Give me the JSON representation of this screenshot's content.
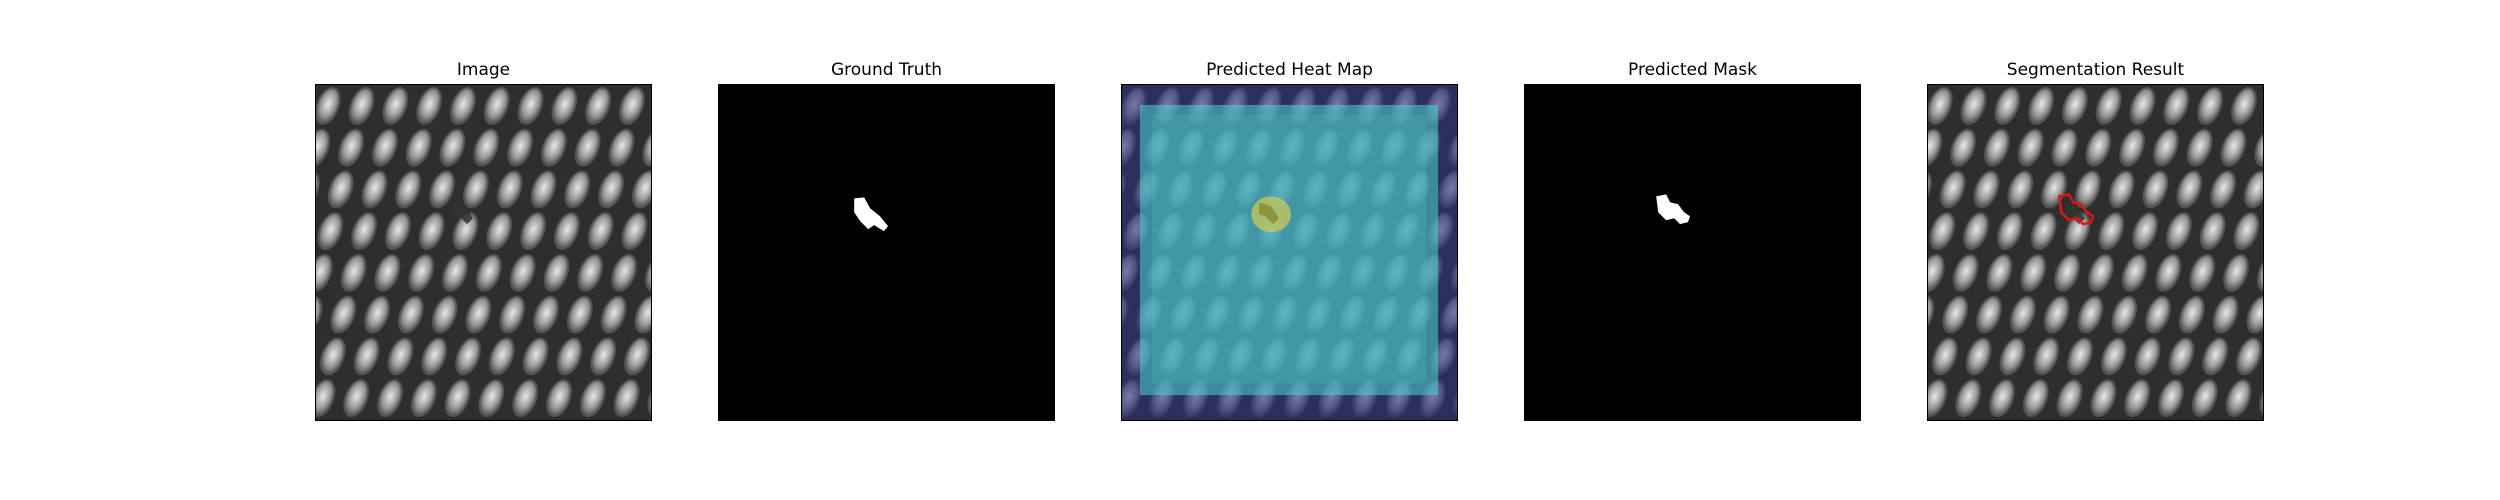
{
  "figure": {
    "panels": [
      {
        "title": "Image",
        "content": "grayscale mesh texture with small dark defect near center-left"
      },
      {
        "title": "Ground Truth",
        "content": "binary mask, white defect region on black"
      },
      {
        "title": "Predicted Heat Map",
        "content": "mesh texture overlaid with cyan/teal heat map, yellow hotspot at defect"
      },
      {
        "title": "Predicted Mask",
        "content": "binary mask, white predicted region on black"
      },
      {
        "title": "Segmentation Result",
        "content": "mesh texture with red contour around defect"
      }
    ],
    "colors": {
      "background": "#ffffff",
      "mask_fg": "#ffffff",
      "mask_bg": "#000000",
      "heat_low": "#2c2f7a",
      "heat_mid": "#4ad7d1",
      "heat_hot": "#c9c85a",
      "contour": "#e01515"
    }
  }
}
